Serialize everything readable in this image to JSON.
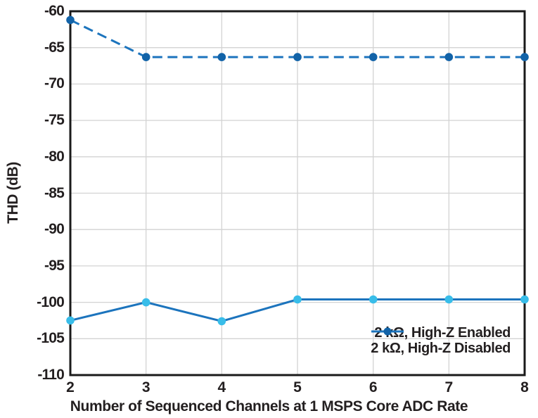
{
  "chart_data": {
    "type": "line",
    "title": "",
    "xlabel": "Number of Sequenced Channels at 1 MSPS Core ADC Rate",
    "ylabel": "THD (dB)",
    "xlim": [
      2,
      8
    ],
    "ylim": [
      -110,
      -60
    ],
    "x": [
      2,
      3,
      4,
      5,
      6,
      7,
      8
    ],
    "xtick_labels": [
      "2",
      "3",
      "4",
      "5",
      "6",
      "7",
      "8"
    ],
    "ytick_values": [
      -60,
      -65,
      -70,
      -75,
      -80,
      -85,
      -90,
      -95,
      -100,
      -105,
      -110
    ],
    "ytick_labels": [
      "-60",
      "-65",
      "-70",
      "-75",
      "-80",
      "-85",
      "-90",
      "-95",
      "-100",
      "-105",
      "-110"
    ],
    "grid": true,
    "legend_position": "lower right",
    "series": [
      {
        "name": "2 kΩ, High-Z Enabled",
        "style": "solid",
        "line_color": "#1c74bd",
        "marker_color": "#38bde9",
        "values": [
          -102.5,
          -100.0,
          -102.6,
          -99.6,
          -99.6,
          -99.6,
          -99.6
        ]
      },
      {
        "name": "2 kΩ, High-Z Disabled",
        "style": "dashed",
        "line_color": "#1c74bd",
        "marker_color": "#1263a8",
        "values": [
          -61.2,
          -66.3,
          -66.3,
          -66.3,
          -66.3,
          -66.3,
          -66.3
        ]
      }
    ],
    "colors": {
      "grid": "#d3d3d3",
      "frame": "#1a1a1a",
      "text": "#231f20",
      "background": "#ffffff"
    }
  }
}
